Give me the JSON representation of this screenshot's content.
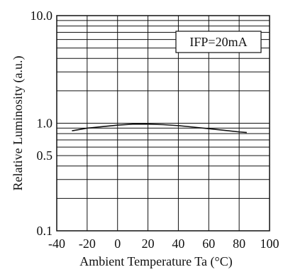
{
  "chart_data": {
    "type": "line",
    "title": "",
    "xlabel": "Ambient Temperature Ta (°C)",
    "ylabel": "Relative Luminosity (a.u.)",
    "xlim": [
      -40,
      100
    ],
    "ylim": [
      0.1,
      10.0
    ],
    "yscale": "log",
    "grid": true,
    "x_ticks": [
      -40,
      -20,
      0,
      20,
      40,
      60,
      80,
      100
    ],
    "x_tick_labels": [
      "-40",
      "-20",
      "0",
      "20",
      "40",
      "60",
      "80",
      "100"
    ],
    "y_tick_labels": [
      {
        "value": 10.0,
        "label": "10.0"
      },
      {
        "value": 1.0,
        "label": "1.0"
      },
      {
        "value": 0.5,
        "label": "0.5"
      },
      {
        "value": 0.1,
        "label": "0.1"
      }
    ],
    "legend": {
      "text": "IFP=20mA",
      "placement": "top-right"
    },
    "series": [
      {
        "x": [
          -30,
          -20,
          -10,
          0,
          10,
          20,
          30,
          40,
          50,
          60,
          70,
          80,
          85
        ],
        "y": [
          0.85,
          0.9,
          0.93,
          0.96,
          0.98,
          0.98,
          0.97,
          0.95,
          0.92,
          0.89,
          0.86,
          0.83,
          0.82
        ]
      }
    ],
    "colors": {
      "line": "#111111",
      "grid": "#111111",
      "background": "#ffffff"
    }
  }
}
